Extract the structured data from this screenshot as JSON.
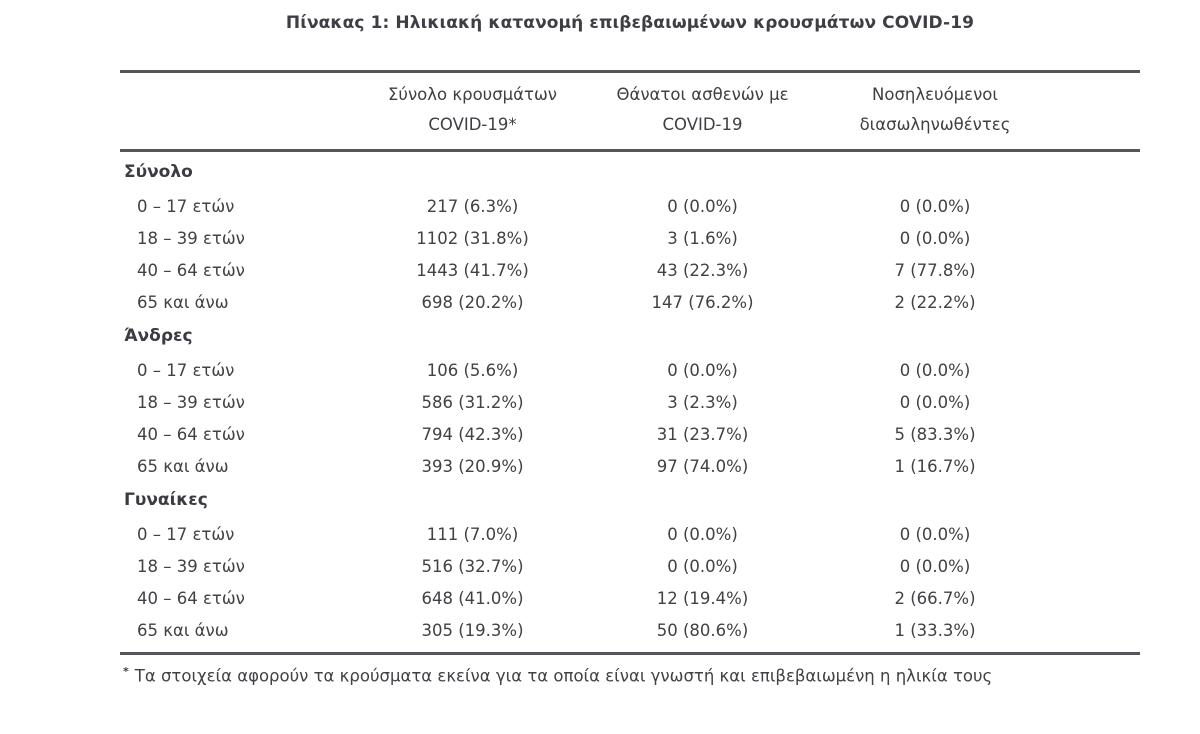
{
  "title": "Πίνακας 1: Ηλικιακή κατανομή επιβεβαιωμένων κρουσμάτων COVID-19",
  "table": {
    "col_headers": [
      {
        "line1": "Σύνολο κρουσμάτων",
        "line2": "COVID-19*"
      },
      {
        "line1": "Θάνατοι ασθενών με",
        "line2": "COVID-19"
      },
      {
        "line1": "Νοσηλευόμενοι",
        "line2": "διασωληνωθέντες"
      }
    ],
    "sections": [
      {
        "label": "Σύνολο",
        "rows": [
          {
            "label": "0 – 17 ετών",
            "cases": "217 (6.3%)",
            "deaths": "0 (0.0%)",
            "intubated": "0 (0.0%)"
          },
          {
            "label": "18 – 39 ετών",
            "cases": "1102 (31.8%)",
            "deaths": "3 (1.6%)",
            "intubated": "0 (0.0%)"
          },
          {
            "label": "40 – 64 ετών",
            "cases": "1443 (41.7%)",
            "deaths": "43 (22.3%)",
            "intubated": "7 (77.8%)"
          },
          {
            "label": "65 και άνω",
            "cases": "698 (20.2%)",
            "deaths": "147 (76.2%)",
            "intubated": "2 (22.2%)"
          }
        ]
      },
      {
        "label": "Άνδρες",
        "rows": [
          {
            "label": "0 – 17 ετών",
            "cases": "106 (5.6%)",
            "deaths": "0 (0.0%)",
            "intubated": "0 (0.0%)"
          },
          {
            "label": "18 – 39 ετών",
            "cases": "586 (31.2%)",
            "deaths": "3 (2.3%)",
            "intubated": "0 (0.0%)"
          },
          {
            "label": "40 – 64 ετών",
            "cases": "794 (42.3%)",
            "deaths": "31 (23.7%)",
            "intubated": "5 (83.3%)"
          },
          {
            "label": "65 και άνω",
            "cases": "393 (20.9%)",
            "deaths": "97 (74.0%)",
            "intubated": "1 (16.7%)"
          }
        ]
      },
      {
        "label": "Γυναίκες",
        "rows": [
          {
            "label": "0 – 17 ετών",
            "cases": "111 (7.0%)",
            "deaths": "0 (0.0%)",
            "intubated": "0 (0.0%)"
          },
          {
            "label": "18 – 39 ετών",
            "cases": "516 (32.7%)",
            "deaths": "0 (0.0%)",
            "intubated": "0 (0.0%)"
          },
          {
            "label": "40 – 64 ετών",
            "cases": "648 (41.0%)",
            "deaths": "12 (19.4%)",
            "intubated": "2 (66.7%)"
          },
          {
            "label": "65 και άνω",
            "cases": "305 (19.3%)",
            "deaths": "50 (80.6%)",
            "intubated": "1 (33.3%)"
          }
        ]
      }
    ]
  },
  "footnote": {
    "marker": "*",
    "text": "Τα στοιχεία αφορούν τα κρούσματα εκείνα για τα οποία είναι γνωστή και επιβεβαιωμένη η ηλικία τους"
  }
}
